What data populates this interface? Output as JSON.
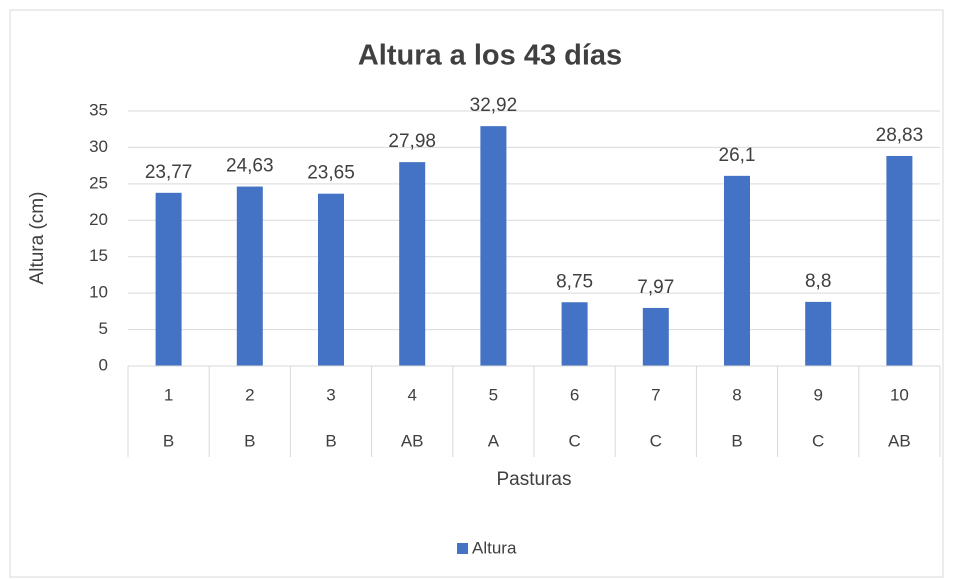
{
  "chart_data": {
    "type": "bar",
    "title": "Altura a los 43 días",
    "x_label": "Pasturas",
    "y_label": "Altura (cm)",
    "categories": [
      "1",
      "2",
      "3",
      "4",
      "5",
      "6",
      "7",
      "8",
      "9",
      "10"
    ],
    "groups": [
      "B",
      "B",
      "B",
      "AB",
      "A",
      "C",
      "C",
      "B",
      "C",
      "AB"
    ],
    "series": [
      {
        "name": "Altura",
        "color": "#4472c4",
        "values": [
          23.77,
          24.63,
          23.65,
          27.98,
          32.92,
          8.75,
          7.97,
          26.1,
          8.8,
          28.83
        ],
        "value_labels": [
          "23,77",
          "24,63",
          "23,65",
          "27,98",
          "32,92",
          "8,75",
          "7,97",
          "26,1",
          "8,8",
          "28,83"
        ]
      }
    ],
    "ylim": [
      0,
      35
    ],
    "yticks": [
      0,
      5,
      10,
      15,
      20,
      25,
      30,
      35
    ],
    "grid": true,
    "legend": "bottom"
  }
}
